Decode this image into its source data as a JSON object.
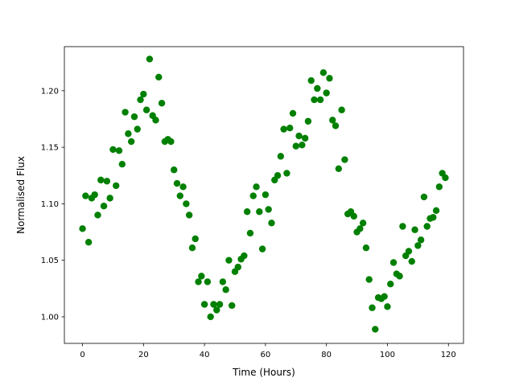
{
  "chart_data": {
    "type": "scatter",
    "xlabel": "Time (Hours)",
    "ylabel": "Normalised Flux",
    "x": [
      0,
      1,
      2,
      3,
      4,
      5,
      6,
      7,
      8,
      9,
      10,
      11,
      12,
      13,
      14,
      15,
      16,
      17,
      18,
      19,
      20,
      21,
      22,
      23,
      24,
      25,
      26,
      27,
      28,
      29,
      30,
      31,
      32,
      33,
      34,
      35,
      36,
      37,
      38,
      39,
      40,
      41,
      42,
      43,
      44,
      45,
      46,
      47,
      48,
      49,
      50,
      51,
      52,
      53,
      54,
      55,
      56,
      57,
      58,
      59,
      60,
      61,
      62,
      63,
      64,
      65,
      66,
      67,
      68,
      69,
      70,
      71,
      72,
      73,
      74,
      75,
      76,
      77,
      78,
      79,
      80,
      81,
      82,
      83,
      84,
      85,
      86,
      87,
      88,
      89,
      90,
      91,
      92,
      93,
      94,
      95,
      96,
      97,
      98,
      99,
      100,
      101,
      102,
      103,
      104,
      105,
      106,
      107,
      108,
      109,
      110,
      111,
      112,
      113,
      114,
      115,
      116,
      117,
      118,
      119
    ],
    "series": [
      {
        "color": "#008000",
        "values": [
          1.078,
          1.107,
          1.066,
          1.105,
          1.108,
          1.09,
          1.121,
          1.098,
          1.12,
          1.105,
          1.148,
          1.116,
          1.147,
          1.135,
          1.181,
          1.162,
          1.155,
          1.177,
          1.166,
          1.192,
          1.197,
          1.183,
          1.228,
          1.178,
          1.174,
          1.212,
          1.189,
          1.155,
          1.157,
          1.155,
          1.13,
          1.118,
          1.107,
          1.115,
          1.1,
          1.09,
          1.061,
          1.069,
          1.031,
          1.036,
          1.011,
          1.031,
          1.0,
          1.011,
          1.006,
          1.011,
          1.031,
          1.024,
          1.05,
          1.01,
          1.04,
          1.044,
          1.051,
          1.054,
          1.093,
          1.074,
          1.107,
          1.115,
          1.093,
          1.06,
          1.108,
          1.095,
          1.083,
          1.121,
          1.125,
          1.142,
          1.166,
          1.127,
          1.167,
          1.18,
          1.151,
          1.16,
          1.152,
          1.158,
          1.173,
          1.209,
          1.192,
          1.202,
          1.192,
          1.216,
          1.198,
          1.211,
          1.174,
          1.169,
          1.131,
          1.183,
          1.139,
          1.091,
          1.093,
          1.089,
          1.075,
          1.078,
          1.083,
          1.061,
          1.033,
          1.008,
          0.989,
          1.017,
          1.016,
          1.018,
          1.009,
          1.029,
          1.048,
          1.038,
          1.036,
          1.08,
          1.054,
          1.058,
          1.049,
          1.077,
          1.063,
          1.068,
          1.106,
          1.08,
          1.087,
          1.088,
          1.094,
          1.115,
          1.127,
          1.123
        ]
      }
    ],
    "xlim": [
      -5.95,
      124.95
    ],
    "xticks": [
      0,
      20,
      40,
      60,
      80,
      100,
      120
    ],
    "ylim": [
      0.9765,
      1.239
    ],
    "yticks": [
      {
        "value": 1.0,
        "label": "1.00"
      },
      {
        "value": 1.05,
        "label": "1.05"
      },
      {
        "value": 1.1,
        "label": "1.10"
      },
      {
        "value": 1.15,
        "label": "1.15"
      },
      {
        "value": 1.2,
        "label": "1.20"
      }
    ]
  }
}
